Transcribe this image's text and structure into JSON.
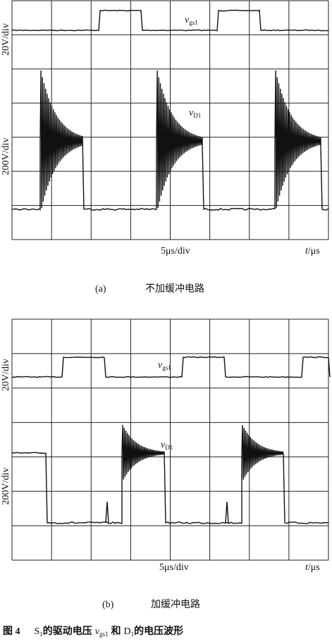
{
  "panel_a": {
    "vgs_label": {
      "symbol": "v",
      "subscript": "gs1"
    },
    "y_scale_top": "20V/div",
    "vd_label": {
      "symbol": "v",
      "subscript": "D1"
    },
    "y_scale_bottom": "200V/div",
    "time_scale": "5μs/div",
    "time_axis": {
      "symbol": "t",
      "unit": "/μs"
    },
    "caption": {
      "tag": "(a)",
      "text": "不加缓冲电路"
    }
  },
  "panel_b": {
    "vgs_label": {
      "symbol": "v",
      "subscript": "gs1"
    },
    "y_scale_top": "20V/div",
    "vd_label": {
      "symbol": "v",
      "subscript": "D1"
    },
    "y_scale_bottom": "200V/div",
    "time_scale": "5μs/div",
    "time_axis": {
      "symbol": "t",
      "unit": "/μs"
    },
    "caption": {
      "tag": "(b)",
      "text": "加缓冲电路"
    }
  },
  "figure_caption": {
    "runs": [
      "图 4",
      "S",
      "1",
      "的驱动电压",
      "v",
      "gs1",
      "和",
      "D",
      "1",
      "的电压波形"
    ]
  }
}
